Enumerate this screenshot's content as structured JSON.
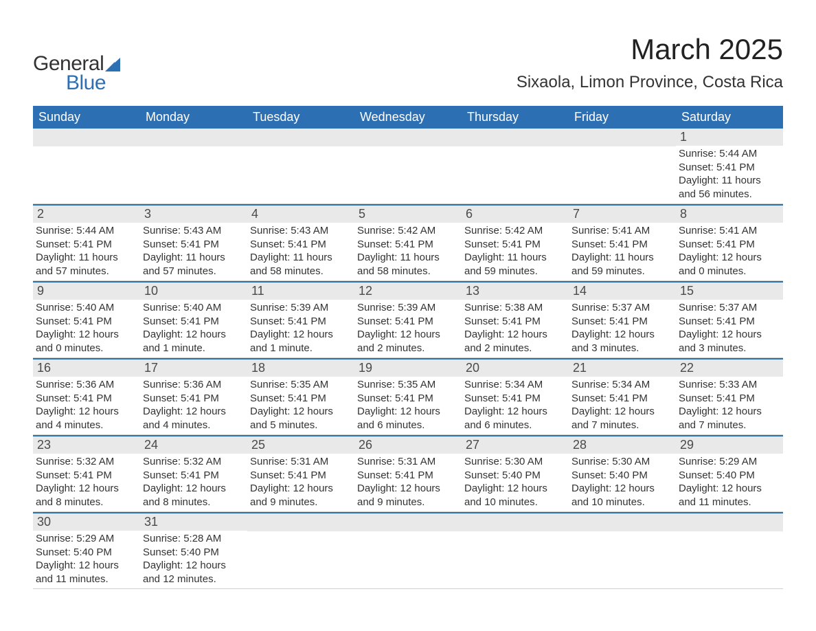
{
  "logo": {
    "word1": "General",
    "word2": "Blue",
    "accent_color": "#2d6fb3"
  },
  "title": "March 2025",
  "subtitle": "Sixaola, Limon Province, Costa Rica",
  "header_bg": "#2d6fb3",
  "header_text_color": "#ffffff",
  "daynum_bg": "#e9e9e9",
  "row_divider_color": "#2d6fb3",
  "text_color": "#333333",
  "day_headers": [
    "Sunday",
    "Monday",
    "Tuesday",
    "Wednesday",
    "Thursday",
    "Friday",
    "Saturday"
  ],
  "weeks": [
    [
      {
        "n": "",
        "sr": "",
        "ss": "",
        "dl": ""
      },
      {
        "n": "",
        "sr": "",
        "ss": "",
        "dl": ""
      },
      {
        "n": "",
        "sr": "",
        "ss": "",
        "dl": ""
      },
      {
        "n": "",
        "sr": "",
        "ss": "",
        "dl": ""
      },
      {
        "n": "",
        "sr": "",
        "ss": "",
        "dl": ""
      },
      {
        "n": "",
        "sr": "",
        "ss": "",
        "dl": ""
      },
      {
        "n": "1",
        "sr": "Sunrise: 5:44 AM",
        "ss": "Sunset: 5:41 PM",
        "dl": "Daylight: 11 hours and 56 minutes."
      }
    ],
    [
      {
        "n": "2",
        "sr": "Sunrise: 5:44 AM",
        "ss": "Sunset: 5:41 PM",
        "dl": "Daylight: 11 hours and 57 minutes."
      },
      {
        "n": "3",
        "sr": "Sunrise: 5:43 AM",
        "ss": "Sunset: 5:41 PM",
        "dl": "Daylight: 11 hours and 57 minutes."
      },
      {
        "n": "4",
        "sr": "Sunrise: 5:43 AM",
        "ss": "Sunset: 5:41 PM",
        "dl": "Daylight: 11 hours and 58 minutes."
      },
      {
        "n": "5",
        "sr": "Sunrise: 5:42 AM",
        "ss": "Sunset: 5:41 PM",
        "dl": "Daylight: 11 hours and 58 minutes."
      },
      {
        "n": "6",
        "sr": "Sunrise: 5:42 AM",
        "ss": "Sunset: 5:41 PM",
        "dl": "Daylight: 11 hours and 59 minutes."
      },
      {
        "n": "7",
        "sr": "Sunrise: 5:41 AM",
        "ss": "Sunset: 5:41 PM",
        "dl": "Daylight: 11 hours and 59 minutes."
      },
      {
        "n": "8",
        "sr": "Sunrise: 5:41 AM",
        "ss": "Sunset: 5:41 PM",
        "dl": "Daylight: 12 hours and 0 minutes."
      }
    ],
    [
      {
        "n": "9",
        "sr": "Sunrise: 5:40 AM",
        "ss": "Sunset: 5:41 PM",
        "dl": "Daylight: 12 hours and 0 minutes."
      },
      {
        "n": "10",
        "sr": "Sunrise: 5:40 AM",
        "ss": "Sunset: 5:41 PM",
        "dl": "Daylight: 12 hours and 1 minute."
      },
      {
        "n": "11",
        "sr": "Sunrise: 5:39 AM",
        "ss": "Sunset: 5:41 PM",
        "dl": "Daylight: 12 hours and 1 minute."
      },
      {
        "n": "12",
        "sr": "Sunrise: 5:39 AM",
        "ss": "Sunset: 5:41 PM",
        "dl": "Daylight: 12 hours and 2 minutes."
      },
      {
        "n": "13",
        "sr": "Sunrise: 5:38 AM",
        "ss": "Sunset: 5:41 PM",
        "dl": "Daylight: 12 hours and 2 minutes."
      },
      {
        "n": "14",
        "sr": "Sunrise: 5:37 AM",
        "ss": "Sunset: 5:41 PM",
        "dl": "Daylight: 12 hours and 3 minutes."
      },
      {
        "n": "15",
        "sr": "Sunrise: 5:37 AM",
        "ss": "Sunset: 5:41 PM",
        "dl": "Daylight: 12 hours and 3 minutes."
      }
    ],
    [
      {
        "n": "16",
        "sr": "Sunrise: 5:36 AM",
        "ss": "Sunset: 5:41 PM",
        "dl": "Daylight: 12 hours and 4 minutes."
      },
      {
        "n": "17",
        "sr": "Sunrise: 5:36 AM",
        "ss": "Sunset: 5:41 PM",
        "dl": "Daylight: 12 hours and 4 minutes."
      },
      {
        "n": "18",
        "sr": "Sunrise: 5:35 AM",
        "ss": "Sunset: 5:41 PM",
        "dl": "Daylight: 12 hours and 5 minutes."
      },
      {
        "n": "19",
        "sr": "Sunrise: 5:35 AM",
        "ss": "Sunset: 5:41 PM",
        "dl": "Daylight: 12 hours and 6 minutes."
      },
      {
        "n": "20",
        "sr": "Sunrise: 5:34 AM",
        "ss": "Sunset: 5:41 PM",
        "dl": "Daylight: 12 hours and 6 minutes."
      },
      {
        "n": "21",
        "sr": "Sunrise: 5:34 AM",
        "ss": "Sunset: 5:41 PM",
        "dl": "Daylight: 12 hours and 7 minutes."
      },
      {
        "n": "22",
        "sr": "Sunrise: 5:33 AM",
        "ss": "Sunset: 5:41 PM",
        "dl": "Daylight: 12 hours and 7 minutes."
      }
    ],
    [
      {
        "n": "23",
        "sr": "Sunrise: 5:32 AM",
        "ss": "Sunset: 5:41 PM",
        "dl": "Daylight: 12 hours and 8 minutes."
      },
      {
        "n": "24",
        "sr": "Sunrise: 5:32 AM",
        "ss": "Sunset: 5:41 PM",
        "dl": "Daylight: 12 hours and 8 minutes."
      },
      {
        "n": "25",
        "sr": "Sunrise: 5:31 AM",
        "ss": "Sunset: 5:41 PM",
        "dl": "Daylight: 12 hours and 9 minutes."
      },
      {
        "n": "26",
        "sr": "Sunrise: 5:31 AM",
        "ss": "Sunset: 5:41 PM",
        "dl": "Daylight: 12 hours and 9 minutes."
      },
      {
        "n": "27",
        "sr": "Sunrise: 5:30 AM",
        "ss": "Sunset: 5:40 PM",
        "dl": "Daylight: 12 hours and 10 minutes."
      },
      {
        "n": "28",
        "sr": "Sunrise: 5:30 AM",
        "ss": "Sunset: 5:40 PM",
        "dl": "Daylight: 12 hours and 10 minutes."
      },
      {
        "n": "29",
        "sr": "Sunrise: 5:29 AM",
        "ss": "Sunset: 5:40 PM",
        "dl": "Daylight: 12 hours and 11 minutes."
      }
    ],
    [
      {
        "n": "30",
        "sr": "Sunrise: 5:29 AM",
        "ss": "Sunset: 5:40 PM",
        "dl": "Daylight: 12 hours and 11 minutes."
      },
      {
        "n": "31",
        "sr": "Sunrise: 5:28 AM",
        "ss": "Sunset: 5:40 PM",
        "dl": "Daylight: 12 hours and 12 minutes."
      },
      {
        "n": "",
        "sr": "",
        "ss": "",
        "dl": ""
      },
      {
        "n": "",
        "sr": "",
        "ss": "",
        "dl": ""
      },
      {
        "n": "",
        "sr": "",
        "ss": "",
        "dl": ""
      },
      {
        "n": "",
        "sr": "",
        "ss": "",
        "dl": ""
      },
      {
        "n": "",
        "sr": "",
        "ss": "",
        "dl": ""
      }
    ]
  ]
}
